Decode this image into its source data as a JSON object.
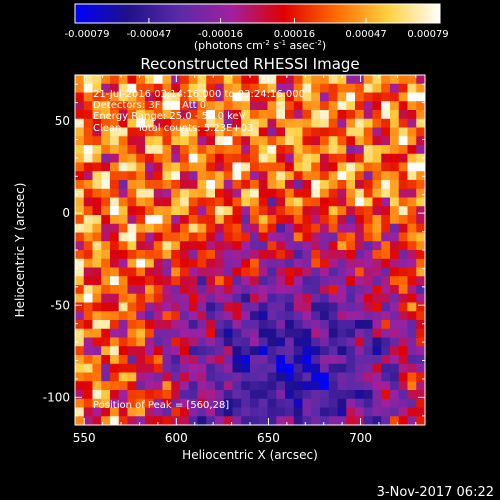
{
  "chart_data": {
    "type": "heatmap",
    "title": "Reconstructed RHESSI Image",
    "xlabel": "Heliocentric X (arcsec)",
    "ylabel": "Heliocentric Y (arcsec)",
    "xlim": [
      545,
      735
    ],
    "ylim": [
      -115,
      75
    ],
    "x_ticks": [
      550,
      600,
      650,
      700
    ],
    "y_ticks": [
      50,
      0,
      -50,
      -100
    ],
    "colorbar": {
      "ticks": [
        "-0.00079",
        "-0.00047",
        "-0.00016",
        "0.00016",
        "0.00047",
        "0.00079"
      ],
      "range": [
        -0.00079,
        0.00079
      ],
      "unit_prefix": "(photons cm",
      "unit_exp1": "-2",
      "unit_mid": " s",
      "unit_exp2": "-1",
      "unit_mid2": " asec",
      "unit_exp3": "-2",
      "unit_suffix": ")",
      "colors": [
        "#0000ff",
        "#20108a",
        "#5a2aa8",
        "#a020a0",
        "#e00000",
        "#ff6a00",
        "#ffd040",
        "#ffffff"
      ]
    },
    "grid_cols": 40,
    "grid_rows": 40,
    "peak_position": [
      560,
      28
    ]
  },
  "annotations": {
    "time": "21-Jul-2016 03:14:16.000 to 03:24:16.000",
    "detectors": "Detectors: 3F 8F, Att 0",
    "energy": "Energy Range: 25.0 - 50.0 keV",
    "clean": "Clean     Total counts: 5.23E+03",
    "peak": "Position of Peak = [560,28]"
  },
  "footer_timestamp": "3-Nov-2017 06:22"
}
